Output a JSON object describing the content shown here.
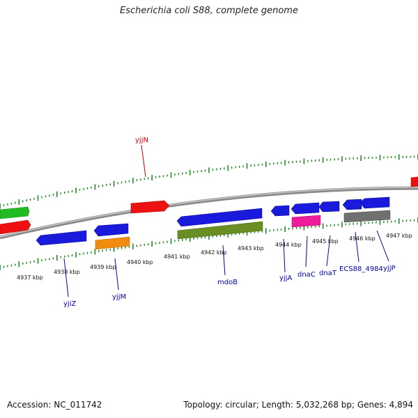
{
  "header": {
    "title": "Escherichia coli S88, complete genome"
  },
  "footer": {
    "accession": "Accession: NC_011742",
    "summary": "Topology: circular; Length: 5,032,268 bp; Genes: 4,894"
  },
  "scale": {
    "ticks": [
      "4937 kbp",
      "4938 kbp",
      "4939 kbp",
      "4940 kbp",
      "4941 kbp",
      "4942 kbp",
      "4943 kbp",
      "4944 kbp",
      "4945 kbp",
      "4946 kbp",
      "4947 kbp"
    ]
  },
  "genes": [
    {
      "name": "yjjN",
      "color": "#cc0000"
    },
    {
      "name": "yjiZ",
      "color": "#0000aa"
    },
    {
      "name": "yjjM",
      "color": "#0000aa"
    },
    {
      "name": "mdoB",
      "color": "#0000aa"
    },
    {
      "name": "yjjA",
      "color": "#0000aa"
    },
    {
      "name": "dnaC",
      "color": "#0000aa"
    },
    {
      "name": "dnaT",
      "color": "#0000aa"
    },
    {
      "name": "ECS88_4984",
      "color": "#0000aa"
    },
    {
      "name": "yjjP",
      "color": "#0000aa"
    }
  ],
  "colors": {
    "backbone": "#8a8a8a",
    "ticks": "#1f8a1f",
    "red": "#ee1111",
    "green": "#22bb22",
    "blue": "#1a1add",
    "orange": "#f28c11",
    "olive": "#6b8e23",
    "pink": "#ee1c9a",
    "gray": "#707070"
  }
}
